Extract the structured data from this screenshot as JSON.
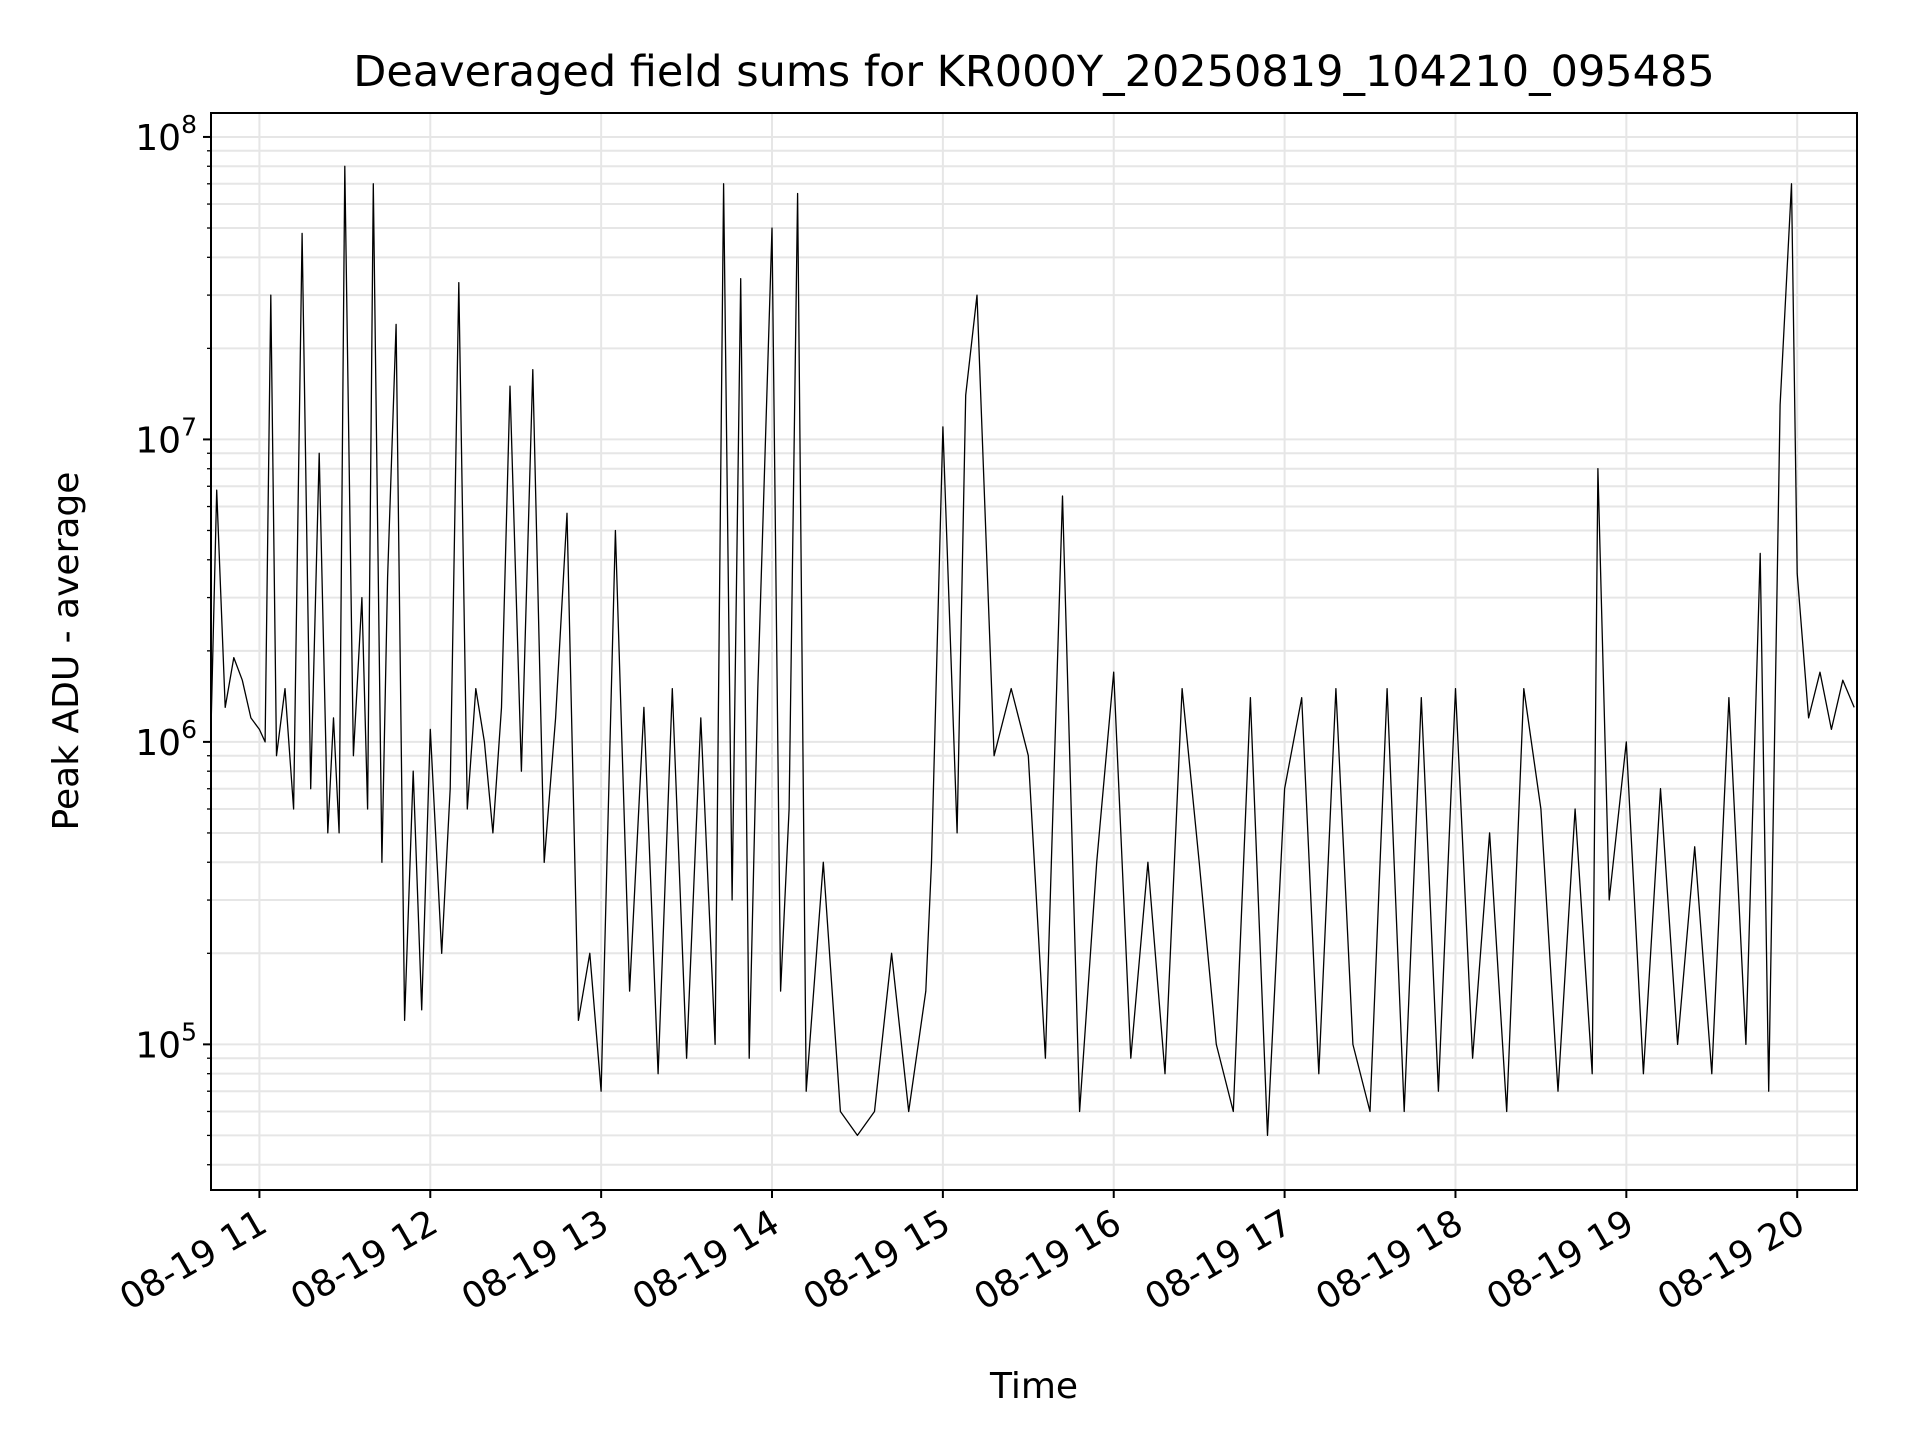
{
  "chart_data": {
    "type": "line",
    "title": "Deaveraged field sums for KR000Y_20250819_104210_095485",
    "xlabel": "Time",
    "ylabel": "Peak ADU - average",
    "yscale": "log",
    "ylim": [
      33000,
      120000000
    ],
    "xlim": [
      "2025-08-19 10:43",
      "2025-08-19 20:21"
    ],
    "grid": true,
    "line_color": "#000000",
    "grid_color": "#e6e6e6",
    "x_ticks": [
      {
        "time": "2025-08-19 11:00",
        "label": "08-19 11"
      },
      {
        "time": "2025-08-19 12:00",
        "label": "08-19 12"
      },
      {
        "time": "2025-08-19 13:00",
        "label": "08-19 13"
      },
      {
        "time": "2025-08-19 14:00",
        "label": "08-19 14"
      },
      {
        "time": "2025-08-19 15:00",
        "label": "08-19 15"
      },
      {
        "time": "2025-08-19 16:00",
        "label": "08-19 16"
      },
      {
        "time": "2025-08-19 17:00",
        "label": "08-19 17"
      },
      {
        "time": "2025-08-19 18:00",
        "label": "08-19 18"
      },
      {
        "time": "2025-08-19 19:00",
        "label": "08-19 19"
      },
      {
        "time": "2025-08-19 20:00",
        "label": "08-19 20"
      }
    ],
    "y_ticks": [
      {
        "value": 100000,
        "base": "10",
        "exp": "5"
      },
      {
        "value": 1000000,
        "base": "10",
        "exp": "6"
      },
      {
        "value": 10000000,
        "base": "10",
        "exp": "7"
      },
      {
        "value": 100000000,
        "base": "10",
        "exp": "8"
      }
    ],
    "series": [
      {
        "x": [
          "2025-08-19 10:43",
          "2025-08-19 10:45",
          "2025-08-19 10:48",
          "2025-08-19 10:51",
          "2025-08-19 10:54",
          "2025-08-19 10:57",
          "2025-08-19 11:00",
          "2025-08-19 11:02",
          "2025-08-19 11:04",
          "2025-08-19 11:06",
          "2025-08-19 11:09",
          "2025-08-19 11:12",
          "2025-08-19 11:15",
          "2025-08-19 11:18",
          "2025-08-19 11:21",
          "2025-08-19 11:24",
          "2025-08-19 11:26",
          "2025-08-19 11:28",
          "2025-08-19 11:30",
          "2025-08-19 11:33",
          "2025-08-19 11:36",
          "2025-08-19 11:38",
          "2025-08-19 11:40",
          "2025-08-19 11:43",
          "2025-08-19 11:45",
          "2025-08-19 11:48",
          "2025-08-19 11:51",
          "2025-08-19 11:54",
          "2025-08-19 11:57",
          "2025-08-19 12:00",
          "2025-08-19 12:04",
          "2025-08-19 12:07",
          "2025-08-19 12:10",
          "2025-08-19 12:13",
          "2025-08-19 12:16",
          "2025-08-19 12:19",
          "2025-08-19 12:22",
          "2025-08-19 12:25",
          "2025-08-19 12:28",
          "2025-08-19 12:32",
          "2025-08-19 12:36",
          "2025-08-19 12:40",
          "2025-08-19 12:44",
          "2025-08-19 12:48",
          "2025-08-19 12:52",
          "2025-08-19 12:56",
          "2025-08-19 13:00",
          "2025-08-19 13:05",
          "2025-08-19 13:10",
          "2025-08-19 13:15",
          "2025-08-19 13:20",
          "2025-08-19 13:25",
          "2025-08-19 13:30",
          "2025-08-19 13:35",
          "2025-08-19 13:40",
          "2025-08-19 13:43",
          "2025-08-19 13:46",
          "2025-08-19 13:49",
          "2025-08-19 13:52",
          "2025-08-19 13:55",
          "2025-08-19 14:00",
          "2025-08-19 14:03",
          "2025-08-19 14:06",
          "2025-08-19 14:09",
          "2025-08-19 14:12",
          "2025-08-19 14:18",
          "2025-08-19 14:24",
          "2025-08-19 14:30",
          "2025-08-19 14:36",
          "2025-08-19 14:42",
          "2025-08-19 14:48",
          "2025-08-19 14:54",
          "2025-08-19 14:56",
          "2025-08-19 15:00",
          "2025-08-19 15:05",
          "2025-08-19 15:08",
          "2025-08-19 15:12",
          "2025-08-19 15:18",
          "2025-08-19 15:24",
          "2025-08-19 15:30",
          "2025-08-19 15:36",
          "2025-08-19 15:42",
          "2025-08-19 15:48",
          "2025-08-19 15:54",
          "2025-08-19 16:00",
          "2025-08-19 16:06",
          "2025-08-19 16:12",
          "2025-08-19 16:18",
          "2025-08-19 16:24",
          "2025-08-19 16:30",
          "2025-08-19 16:36",
          "2025-08-19 16:42",
          "2025-08-19 16:48",
          "2025-08-19 16:54",
          "2025-08-19 17:00",
          "2025-08-19 17:06",
          "2025-08-19 17:12",
          "2025-08-19 17:18",
          "2025-08-19 17:24",
          "2025-08-19 17:30",
          "2025-08-19 17:36",
          "2025-08-19 17:42",
          "2025-08-19 17:48",
          "2025-08-19 17:54",
          "2025-08-19 18:00",
          "2025-08-19 18:06",
          "2025-08-19 18:12",
          "2025-08-19 18:18",
          "2025-08-19 18:24",
          "2025-08-19 18:30",
          "2025-08-19 18:36",
          "2025-08-19 18:42",
          "2025-08-19 18:48",
          "2025-08-19 18:50",
          "2025-08-19 18:54",
          "2025-08-19 19:00",
          "2025-08-19 19:06",
          "2025-08-19 19:12",
          "2025-08-19 19:18",
          "2025-08-19 19:24",
          "2025-08-19 19:30",
          "2025-08-19 19:36",
          "2025-08-19 19:42",
          "2025-08-19 19:47",
          "2025-08-19 19:50",
          "2025-08-19 19:54",
          "2025-08-19 19:58",
          "2025-08-19 20:00",
          "2025-08-19 20:04",
          "2025-08-19 20:08",
          "2025-08-19 20:12",
          "2025-08-19 20:16",
          "2025-08-19 20:20"
        ],
        "y": [
          1100000,
          6800000,
          1300000,
          1900000,
          1600000,
          1200000,
          1100000,
          1000000,
          30000000,
          900000,
          1500000,
          600000,
          48000000,
          700000,
          9000000,
          500000,
          1200000,
          500000,
          80000000,
          900000,
          3000000,
          600000,
          70000000,
          400000,
          3500000,
          24000000,
          120000,
          800000,
          130000,
          1100000,
          200000,
          700000,
          33000000,
          600000,
          1500000,
          1000000,
          500000,
          1300000,
          15000000,
          800000,
          17000000,
          400000,
          1200000,
          5700000,
          120000,
          200000,
          70000,
          5000000,
          150000,
          1300000,
          80000,
          1500000,
          90000,
          1200000,
          100000,
          70000000,
          300000,
          34000000,
          90000,
          1500000,
          50000000,
          150000,
          600000,
          65000000,
          70000,
          400000,
          60000,
          50000,
          60000,
          200000,
          60000,
          150000,
          400000,
          11000000,
          500000,
          14000000,
          30000000,
          900000,
          1500000,
          900000,
          90000,
          6500000,
          60000,
          400000,
          1700000,
          90000,
          400000,
          80000,
          1500000,
          400000,
          100000,
          60000,
          1400000,
          50000,
          700000,
          1400000,
          80000,
          1500000,
          100000,
          60000,
          1500000,
          60000,
          1400000,
          70000,
          1500000,
          90000,
          500000,
          60000,
          1500000,
          600000,
          70000,
          600000,
          80000,
          8000000,
          300000,
          1000000,
          80000,
          700000,
          100000,
          450000,
          80000,
          1400000,
          100000,
          4200000,
          70000,
          13000000,
          70000000,
          3600000,
          1200000,
          1700000,
          1100000,
          1600000,
          1300000
        ]
      }
    ]
  }
}
